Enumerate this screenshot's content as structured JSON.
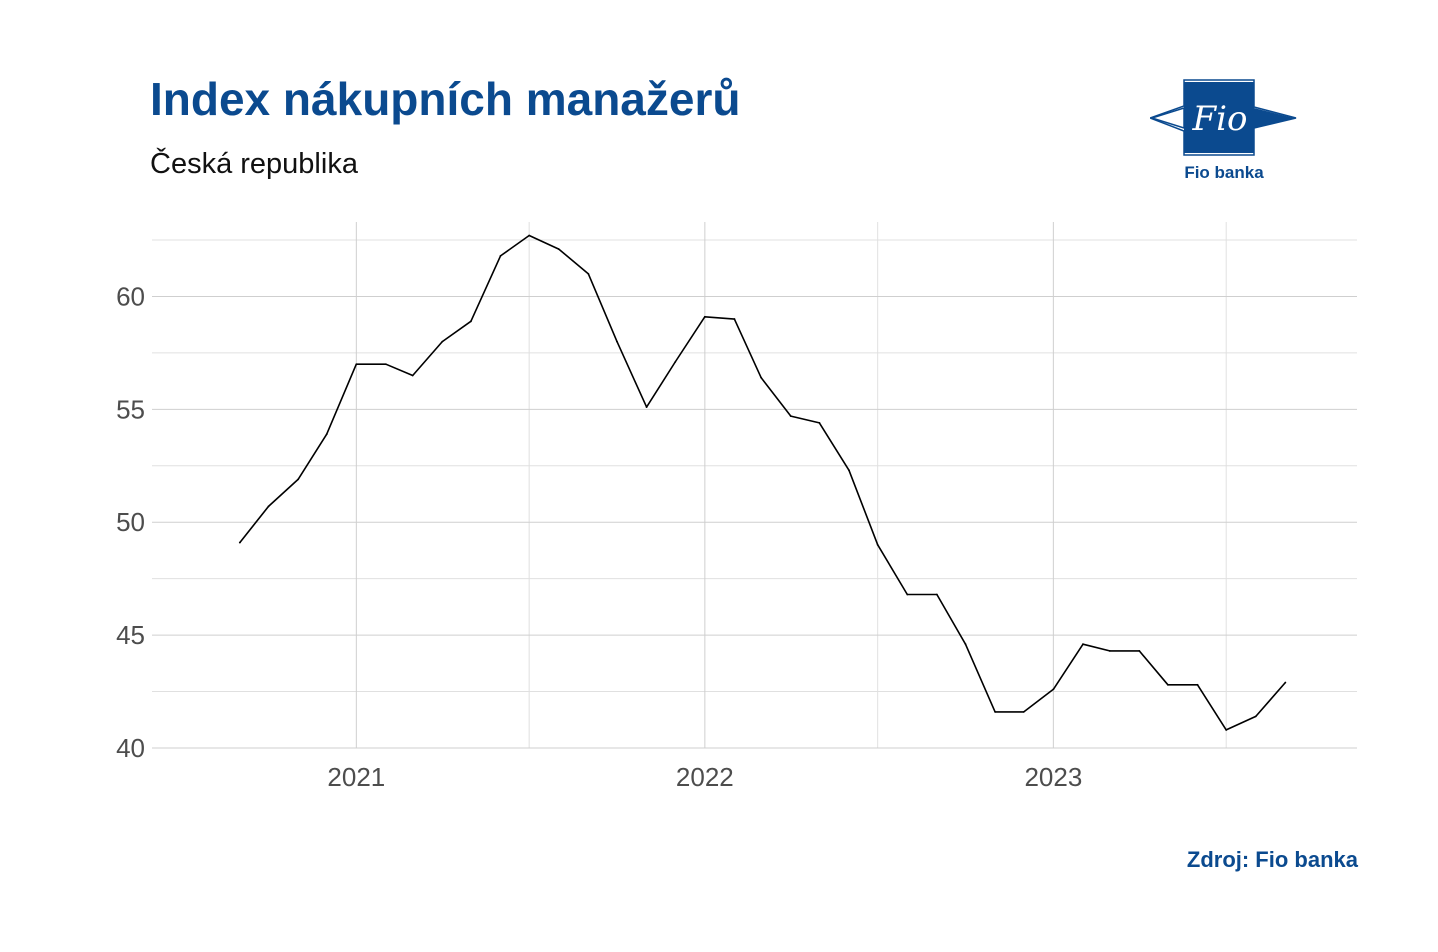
{
  "header": {
    "title": "Index nákupních manažerů",
    "subtitle": "Česká republika"
  },
  "logo": {
    "mark_text": "Fio",
    "name": "Fio banka",
    "color": "#0b4a8f"
  },
  "source": "Zdroj: Fio banka",
  "chart_data": {
    "type": "line",
    "title": "Index nákupních manažerů",
    "subtitle": "Česká republika",
    "xlabel": "",
    "ylabel": "",
    "x_range": [
      "2020-06-01",
      "2023-11-15"
    ],
    "ylim": [
      40,
      63.3
    ],
    "y_ticks": [
      40,
      45,
      50,
      55,
      60
    ],
    "y_minor_ticks": [
      42.5,
      47.5,
      52.5,
      57.5,
      62.5
    ],
    "x_ticks": [
      {
        "date": "2021-01-01",
        "label": "2021"
      },
      {
        "date": "2022-01-01",
        "label": "2022"
      },
      {
        "date": "2023-01-01",
        "label": "2023"
      }
    ],
    "x_minor_ticks": [
      "2021-07-01",
      "2022-07-01",
      "2023-07-01"
    ],
    "grid": true,
    "line_color": "#000000",
    "series": [
      {
        "points": [
          {
            "date": "2020-09-01",
            "value": 49.1
          },
          {
            "date": "2020-10-01",
            "value": 50.7
          },
          {
            "date": "2020-11-01",
            "value": 51.9
          },
          {
            "date": "2020-12-01",
            "value": 53.9
          },
          {
            "date": "2021-01-01",
            "value": 57.0
          },
          {
            "date": "2021-02-01",
            "value": 57.0
          },
          {
            "date": "2021-03-01",
            "value": 56.5
          },
          {
            "date": "2021-04-01",
            "value": 58.0
          },
          {
            "date": "2021-05-01",
            "value": 58.9
          },
          {
            "date": "2021-06-01",
            "value": 61.8
          },
          {
            "date": "2021-07-01",
            "value": 62.7
          },
          {
            "date": "2021-08-01",
            "value": 62.1
          },
          {
            "date": "2021-09-01",
            "value": 61.0
          },
          {
            "date": "2021-10-01",
            "value": 58.0
          },
          {
            "date": "2021-11-01",
            "value": 55.1
          },
          {
            "date": "2021-12-01",
            "value": 57.1
          },
          {
            "date": "2022-01-01",
            "value": 59.1
          },
          {
            "date": "2022-02-01",
            "value": 59.0
          },
          {
            "date": "2022-03-01",
            "value": 56.4
          },
          {
            "date": "2022-04-01",
            "value": 54.7
          },
          {
            "date": "2022-05-01",
            "value": 54.4
          },
          {
            "date": "2022-06-01",
            "value": 52.3
          },
          {
            "date": "2022-07-01",
            "value": 49.0
          },
          {
            "date": "2022-08-01",
            "value": 46.8
          },
          {
            "date": "2022-09-01",
            "value": 46.8
          },
          {
            "date": "2022-10-01",
            "value": 44.6
          },
          {
            "date": "2022-11-01",
            "value": 41.6
          },
          {
            "date": "2022-12-01",
            "value": 41.6
          },
          {
            "date": "2023-01-01",
            "value": 42.6
          },
          {
            "date": "2023-02-01",
            "value": 44.6
          },
          {
            "date": "2023-03-01",
            "value": 44.3
          },
          {
            "date": "2023-04-01",
            "value": 44.3
          },
          {
            "date": "2023-05-01",
            "value": 42.8
          },
          {
            "date": "2023-06-01",
            "value": 42.8
          },
          {
            "date": "2023-07-01",
            "value": 40.8
          },
          {
            "date": "2023-08-01",
            "value": 41.4
          },
          {
            "date": "2023-09-01",
            "value": 42.9
          }
        ]
      }
    ]
  }
}
